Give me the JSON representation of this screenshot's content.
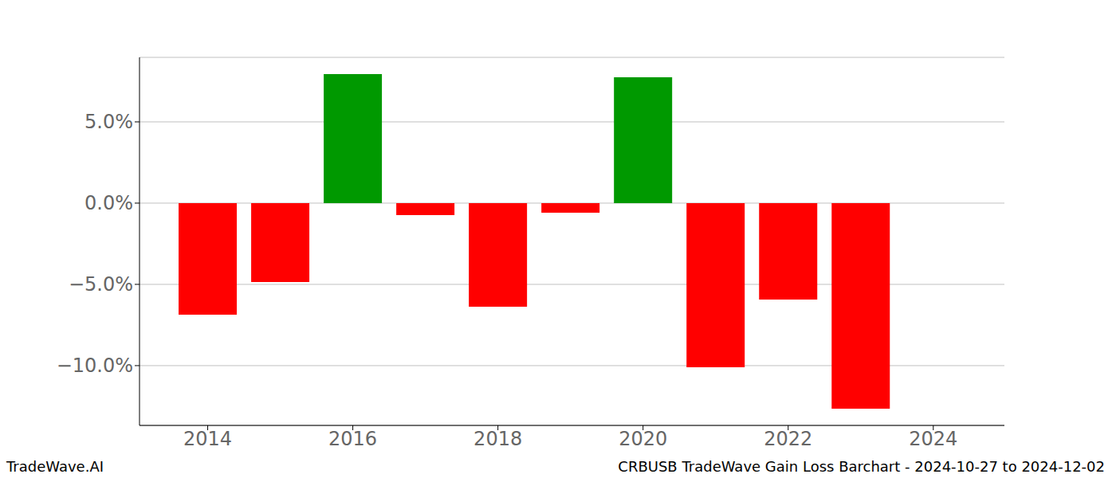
{
  "chart_data": {
    "type": "bar",
    "x": [
      2014,
      2015,
      2016,
      2017,
      2018,
      2019,
      2020,
      2021,
      2022,
      2023
    ],
    "values": [
      -6.86,
      -4.85,
      7.94,
      -0.74,
      -6.37,
      -0.59,
      7.75,
      -10.1,
      -5.93,
      -12.65
    ],
    "colors": [
      "#ff0000",
      "#ff0000",
      "#009900",
      "#ff0000",
      "#ff0000",
      "#ff0000",
      "#009900",
      "#ff0000",
      "#ff0000",
      "#ff0000"
    ],
    "xlim": [
      2013.06,
      2024.98
    ],
    "xticks": [
      2014,
      2016,
      2018,
      2020,
      2022,
      2024
    ],
    "ylim": [
      -13.68,
      8.97
    ],
    "yticks": [
      {
        "value": -10,
        "label": "−10.0%"
      },
      {
        "value": -5,
        "label": "−5.0%"
      },
      {
        "value": 0,
        "label": "0.0%"
      },
      {
        "value": 5,
        "label": "5.0%"
      }
    ],
    "grid": true,
    "annotations": [
      "TradeWave.AI",
      "CRBUSB TradeWave Gain Loss Barchart - 2024-10-27 to 2024-12-02"
    ]
  }
}
